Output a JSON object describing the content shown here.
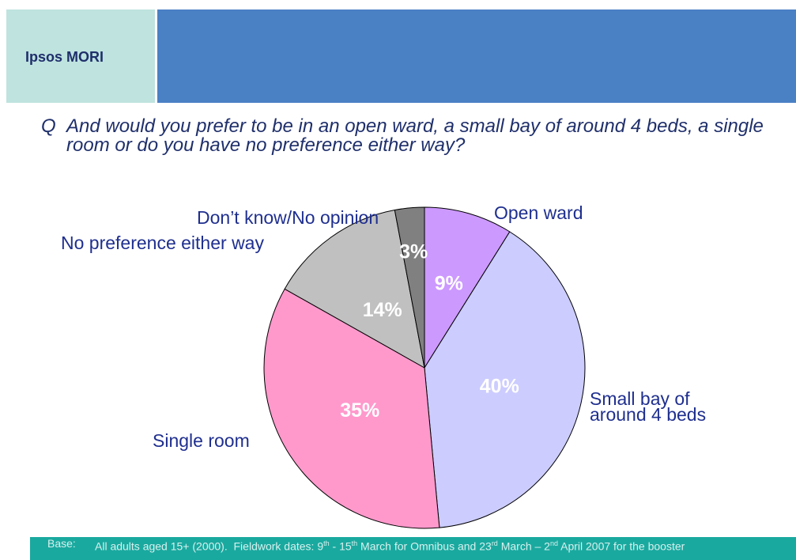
{
  "header": {
    "logo": "Ipsos MORI"
  },
  "question": {
    "marker": "Q",
    "text": "And would you prefer to be in an open ward, a small bay of around 4 beds, a single room or do you have no preference either way?"
  },
  "chart_data": {
    "type": "pie",
    "title": "",
    "slices": [
      {
        "label": "Open ward",
        "value": 9,
        "value_label": "9%",
        "color": "#cc99ff"
      },
      {
        "label": "Small bay of around 4 beds",
        "value": 40,
        "value_label": "40%",
        "color": "#ccccff"
      },
      {
        "label": "Single room",
        "value": 35,
        "value_label": "35%",
        "color": "#ff99cc"
      },
      {
        "label": "No preference either way",
        "value": 14,
        "value_label": "14%",
        "color": "#c0c0c0"
      },
      {
        "label": "Don’t know/No opinion",
        "value": 3,
        "value_label": "3%",
        "color": "#808080"
      }
    ],
    "start": "12 o'clock",
    "direction": "clockwise"
  },
  "footer": {
    "label": "Base:",
    "text": "All adults aged 15+ (2000).  Fieldwork dates: 9th - 15th March for Omnibus and 23rd March – 2nd April 2007 for the booster"
  }
}
